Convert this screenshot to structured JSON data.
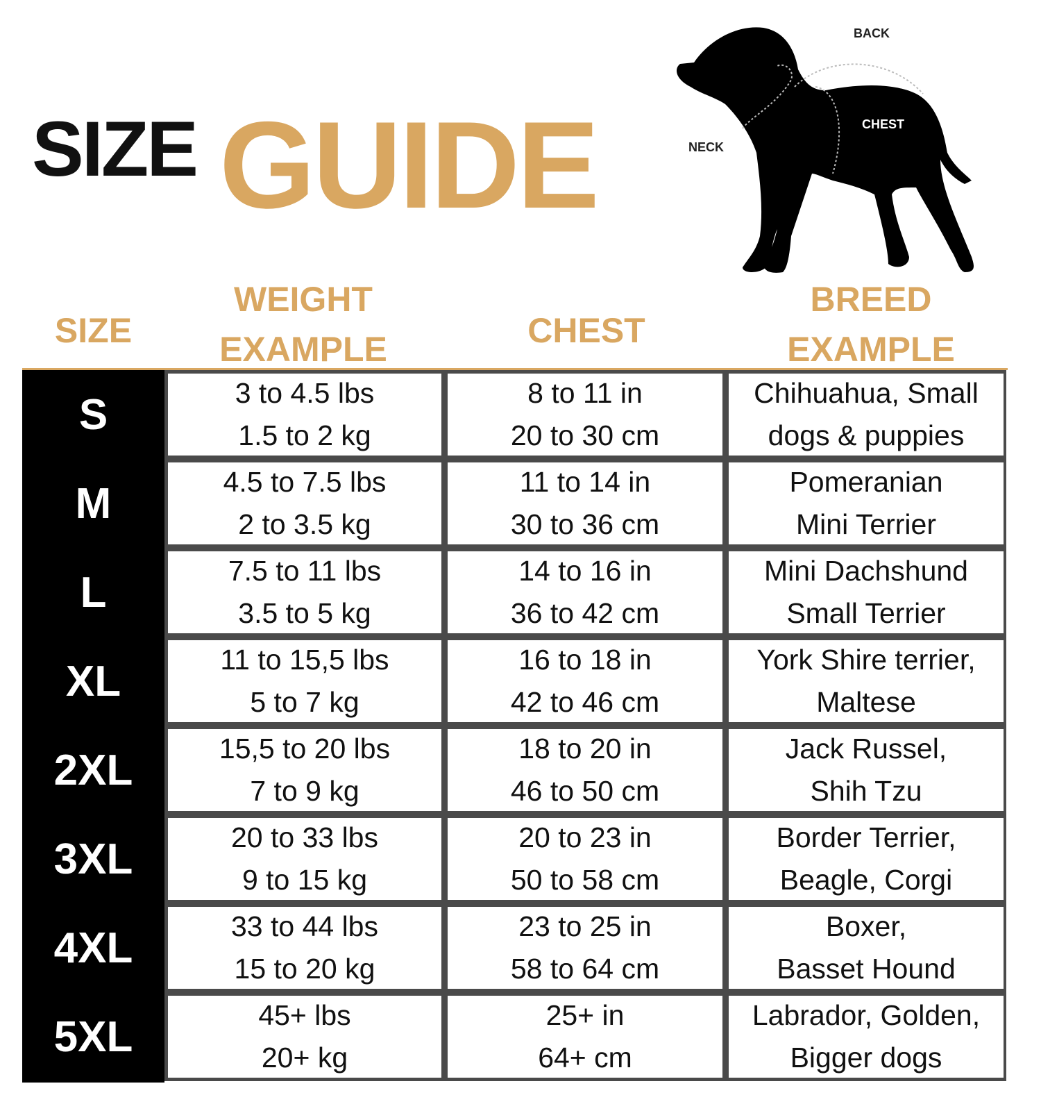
{
  "title": {
    "size": "SIZE",
    "guide": "GUIDE"
  },
  "colors": {
    "accent": "#D9A761",
    "size_column": "#000000",
    "border": "#4a4a4a"
  },
  "diagram": {
    "labels": {
      "back": "BACK",
      "chest": "CHEST",
      "neck": "NECK"
    },
    "icon": "dog-silhouette"
  },
  "headers": {
    "size": "SIZE",
    "weight_1": "WEIGHT",
    "weight_2": "EXAMPLE",
    "chest": "CHEST",
    "breed_1": "BREED",
    "breed_2": "EXAMPLE"
  },
  "rows": [
    {
      "size": "S",
      "weight_lbs": "3 to 4.5 lbs",
      "weight_kg": "1.5 to 2 kg",
      "chest_in": "8 to 11 in",
      "chest_cm": "20 to 30 cm",
      "breed_1": "Chihuahua, Small",
      "breed_2": "dogs & puppies"
    },
    {
      "size": "M",
      "weight_lbs": "4.5 to 7.5 lbs",
      "weight_kg": "2 to 3.5 kg",
      "chest_in": "11 to 14 in",
      "chest_cm": "30 to 36 cm",
      "breed_1": "Pomeranian",
      "breed_2": "Mini Terrier"
    },
    {
      "size": "L",
      "weight_lbs": "7.5 to 11 lbs",
      "weight_kg": "3.5 to 5 kg",
      "chest_in": "14 to 16 in",
      "chest_cm": "36 to 42 cm",
      "breed_1": "Mini Dachshund",
      "breed_2": "Small Terrier"
    },
    {
      "size": "XL",
      "weight_lbs": "11 to 15,5 lbs",
      "weight_kg": "5 to 7 kg",
      "chest_in": "16 to 18 in",
      "chest_cm": "42 to 46 cm",
      "breed_1": "York Shire terrier,",
      "breed_2": "Maltese"
    },
    {
      "size": "2XL",
      "weight_lbs": "15,5 to 20 lbs",
      "weight_kg": "7 to 9 kg",
      "chest_in": "18 to 20 in",
      "chest_cm": "46 to 50 cm",
      "breed_1": "Jack Russel,",
      "breed_2": "Shih Tzu"
    },
    {
      "size": "3XL",
      "weight_lbs": "20 to 33 lbs",
      "weight_kg": "9 to 15 kg",
      "chest_in": "20 to 23 in",
      "chest_cm": "50 to 58 cm",
      "breed_1": "Border Terrier,",
      "breed_2": "Beagle, Corgi"
    },
    {
      "size": "4XL",
      "weight_lbs": "33 to 44 lbs",
      "weight_kg": "15 to 20 kg",
      "chest_in": "23 to 25 in",
      "chest_cm": "58 to 64 cm",
      "breed_1": "Boxer,",
      "breed_2": "Basset Hound"
    },
    {
      "size": "5XL",
      "weight_lbs": "45+ lbs",
      "weight_kg": "20+ kg",
      "chest_in": "25+ in",
      "chest_cm": "64+ cm",
      "breed_1": "Labrador, Golden,",
      "breed_2": "Bigger dogs"
    }
  ]
}
